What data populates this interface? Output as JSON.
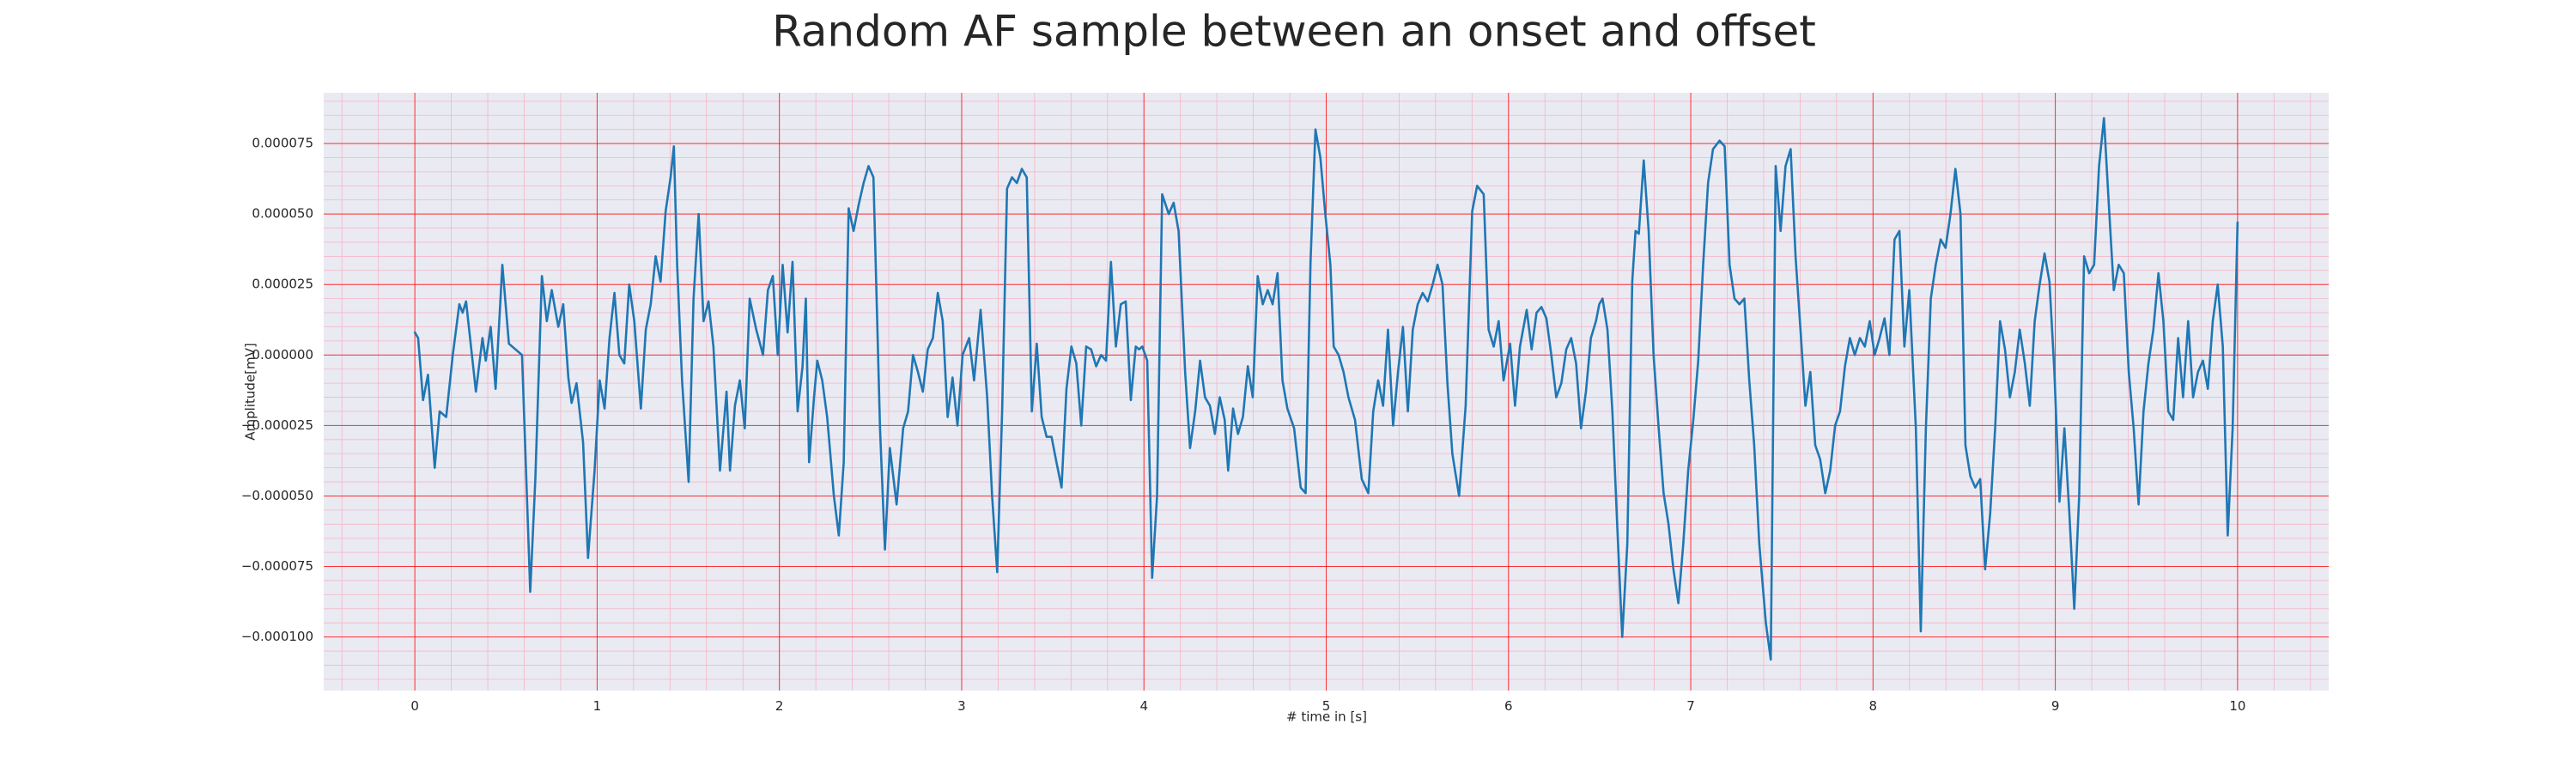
{
  "chart_data": {
    "type": "line",
    "title": "Random AF sample between an onset and offset",
    "xlabel": "# time in [s]",
    "ylabel": "Amplitude[mV]",
    "color": "#1f77b4",
    "grid": true,
    "minor_grid": true,
    "xlim": [
      -0.5,
      10.5
    ],
    "ylim": [
      -0.000119,
      9.3e-05
    ],
    "xticks": [
      0,
      1,
      2,
      3,
      4,
      5,
      6,
      7,
      8,
      9,
      10
    ],
    "yticks": [
      {
        "value": -0.0001,
        "label": "−0.000100"
      },
      {
        "value": -7.5e-05,
        "label": "−0.000075"
      },
      {
        "value": -5e-05,
        "label": "−0.000050"
      },
      {
        "value": -2.5e-05,
        "label": "−0.000025"
      },
      {
        "value": 0,
        "label": "0.000000"
      },
      {
        "value": 2.5e-05,
        "label": "0.000025"
      },
      {
        "value": 5e-05,
        "label": "0.000050"
      },
      {
        "value": 7.5e-05,
        "label": "0.000075"
      }
    ],
    "x": [
      0.0,
      0.018,
      0.045,
      0.072,
      0.109,
      0.136,
      0.172,
      0.208,
      0.244,
      0.262,
      0.281,
      0.308,
      0.335,
      0.371,
      0.389,
      0.416,
      0.443,
      0.48,
      0.516,
      0.552,
      0.588,
      0.633,
      0.661,
      0.697,
      0.724,
      0.751,
      0.787,
      0.814,
      0.842,
      0.86,
      0.887,
      0.923,
      0.95,
      0.986,
      1.014,
      1.041,
      1.068,
      1.095,
      1.122,
      1.149,
      1.176,
      1.204,
      1.24,
      1.267,
      1.294,
      1.321,
      1.348,
      1.376,
      1.403,
      1.421,
      1.439,
      1.466,
      1.502,
      1.529,
      1.557,
      1.584,
      1.611,
      1.638,
      1.674,
      1.71,
      1.729,
      1.756,
      1.783,
      1.81,
      1.837,
      1.873,
      1.91,
      1.937,
      1.964,
      1.991,
      2.018,
      2.045,
      2.072,
      2.1,
      2.127,
      2.145,
      2.163,
      2.19,
      2.208,
      2.235,
      2.262,
      2.299,
      2.326,
      2.353,
      2.38,
      2.407,
      2.434,
      2.462,
      2.489,
      2.516,
      2.552,
      2.579,
      2.606,
      2.643,
      2.679,
      2.706,
      2.733,
      2.76,
      2.787,
      2.814,
      2.842,
      2.869,
      2.896,
      2.923,
      2.95,
      2.977,
      3.005,
      3.023,
      3.041,
      3.068,
      3.104,
      3.14,
      3.167,
      3.195,
      3.222,
      3.249,
      3.276,
      3.303,
      3.33,
      3.357,
      3.385,
      3.412,
      3.439,
      3.466,
      3.493,
      3.52,
      3.548,
      3.575,
      3.602,
      3.629,
      3.656,
      3.683,
      3.71,
      3.738,
      3.765,
      3.792,
      3.819,
      3.846,
      3.873,
      3.9,
      3.928,
      3.955,
      3.973,
      3.991,
      4.018,
      4.045,
      4.072,
      4.1,
      4.136,
      4.163,
      4.19,
      4.226,
      4.253,
      4.281,
      4.308,
      4.335,
      4.362,
      4.389,
      4.416,
      4.443,
      4.462,
      4.489,
      4.516,
      4.543,
      4.57,
      4.597,
      4.624,
      4.652,
      4.679,
      4.706,
      4.733,
      4.76,
      4.787,
      4.824,
      4.86,
      4.887,
      4.914,
      4.941,
      4.968,
      4.995,
      5.023,
      5.041,
      5.068,
      5.095,
      5.122,
      5.158,
      5.195,
      5.231,
      5.258,
      5.285,
      5.312,
      5.339,
      5.367,
      5.394,
      5.421,
      5.448,
      5.475,
      5.502,
      5.529,
      5.557,
      5.584,
      5.611,
      5.638,
      5.665,
      5.692,
      5.729,
      5.765,
      5.801,
      5.828,
      5.864,
      5.891,
      5.919,
      5.946,
      5.973,
      6.009,
      6.036,
      6.063,
      6.1,
      6.127,
      6.154,
      6.181,
      6.208,
      6.235,
      6.262,
      6.29,
      6.317,
      6.344,
      6.371,
      6.398,
      6.425,
      6.452,
      6.48,
      6.498,
      6.516,
      6.543,
      6.57,
      6.597,
      6.624,
      6.652,
      6.679,
      6.697,
      6.715,
      6.742,
      6.769,
      6.796,
      6.824,
      6.851,
      6.878,
      6.905,
      6.932,
      6.959,
      6.986,
      7.014,
      7.041,
      7.068,
      7.095,
      7.122,
      7.158,
      7.186,
      7.213,
      7.24,
      7.267,
      7.294,
      7.321,
      7.348,
      7.376,
      7.412,
      7.439,
      7.466,
      7.493,
      7.52,
      7.548,
      7.575,
      7.602,
      7.629,
      7.656,
      7.683,
      7.71,
      7.738,
      7.765,
      7.792,
      7.819,
      7.846,
      7.873,
      7.9,
      7.928,
      7.955,
      7.982,
      8.009,
      8.036,
      8.063,
      8.09,
      8.118,
      8.145,
      8.172,
      8.199,
      8.235,
      8.262,
      8.29,
      8.317,
      8.344,
      8.371,
      8.398,
      8.425,
      8.452,
      8.48,
      8.507,
      8.534,
      8.561,
      8.588,
      8.615,
      8.643,
      8.67,
      8.697,
      8.724,
      8.751,
      8.778,
      8.805,
      8.833,
      8.86,
      8.887,
      8.914,
      8.941,
      8.968,
      8.995,
      9.023,
      9.05,
      9.077,
      9.104,
      9.131,
      9.158,
      9.186,
      9.213,
      9.24,
      9.267,
      9.294,
      9.321,
      9.348,
      9.376,
      9.403,
      9.43,
      9.457,
      9.484,
      9.511,
      9.538,
      9.566,
      9.593,
      9.62,
      9.647,
      9.674,
      9.701,
      9.729,
      9.756,
      9.783,
      9.81,
      9.837,
      9.864,
      9.891,
      9.919,
      9.946,
      9.973,
      10.0
    ],
    "values": [
      8e-06,
      6e-06,
      -1.6e-05,
      -7e-06,
      -4e-05,
      -2e-05,
      -2.2e-05,
      0,
      1.8e-05,
      1.5e-05,
      1.9e-05,
      3e-06,
      -1.3e-05,
      6e-06,
      -2e-06,
      1e-05,
      -1.2e-05,
      3.2e-05,
      4e-06,
      2e-06,
      0,
      -8.4e-05,
      -4.4e-05,
      2.8e-05,
      1.2e-05,
      2.3e-05,
      1e-05,
      1.8e-05,
      -8e-06,
      -1.7e-05,
      -1e-05,
      -3.1e-05,
      -7.2e-05,
      -4.1e-05,
      -9e-06,
      -1.9e-05,
      6e-06,
      2.2e-05,
      0,
      -3e-06,
      2.5e-05,
      1.2e-05,
      -1.9e-05,
      9e-06,
      1.8e-05,
      3.5e-05,
      2.6e-05,
      5.1e-05,
      6.3e-05,
      7.4e-05,
      3.2e-05,
      -9e-06,
      -4.5e-05,
      2e-05,
      5e-05,
      1.2e-05,
      1.9e-05,
      3e-06,
      -4.1e-05,
      -1.3e-05,
      -4.1e-05,
      -1.8e-05,
      -9e-06,
      -2.6e-05,
      2e-05,
      9e-06,
      0,
      2.3e-05,
      2.8e-05,
      0,
      3.2e-05,
      8e-06,
      3.3e-05,
      -2e-05,
      -4e-06,
      2e-05,
      -3.8e-05,
      -1.5e-05,
      -2e-06,
      -9e-06,
      -2.2e-05,
      -5e-05,
      -6.4e-05,
      -3.8e-05,
      5.2e-05,
      4.4e-05,
      5.3e-05,
      6.1e-05,
      6.7e-05,
      6.3e-05,
      -2.6e-05,
      -6.9e-05,
      -3.3e-05,
      -5.3e-05,
      -2.6e-05,
      -2e-05,
      0,
      -6e-06,
      -1.3e-05,
      2e-06,
      6e-06,
      2.2e-05,
      1.2e-05,
      -2.2e-05,
      -8e-06,
      -2.5e-05,
      0,
      3e-06,
      6e-06,
      -9e-06,
      1.6e-05,
      -1.5e-05,
      -5e-05,
      -7.7e-05,
      -2e-05,
      5.9e-05,
      6.3e-05,
      6.1e-05,
      6.6e-05,
      6.3e-05,
      -2e-05,
      4e-06,
      -2.2e-05,
      -2.9e-05,
      -2.9e-05,
      -3.8e-05,
      -4.7e-05,
      -1.2e-05,
      3e-06,
      -3e-06,
      -2.5e-05,
      3e-06,
      2e-06,
      -4e-06,
      0,
      -2e-06,
      3.3e-05,
      3e-06,
      1.8e-05,
      1.9e-05,
      -1.6e-05,
      3e-06,
      2e-06,
      3e-06,
      -2e-06,
      -7.9e-05,
      -5e-05,
      5.7e-05,
      5e-05,
      5.4e-05,
      4.4e-05,
      -6e-06,
      -3.3e-05,
      -2e-05,
      -2e-06,
      -1.5e-05,
      -1.8e-05,
      -2.8e-05,
      -1.5e-05,
      -2.3e-05,
      -4.1e-05,
      -1.9e-05,
      -2.8e-05,
      -2.2e-05,
      -4e-06,
      -1.5e-05,
      2.8e-05,
      1.8e-05,
      2.3e-05,
      1.8e-05,
      2.9e-05,
      -9e-06,
      -1.9e-05,
      -2.6e-05,
      -4.7e-05,
      -4.9e-05,
      3.3e-05,
      8e-05,
      7e-05,
      5e-05,
      3.2e-05,
      3e-06,
      0,
      -6e-06,
      -1.5e-05,
      -2.3e-05,
      -4.4e-05,
      -4.9e-05,
      -2e-05,
      -9e-06,
      -1.8e-05,
      9e-06,
      -2.5e-05,
      -6e-06,
      1e-05,
      -2e-05,
      9e-06,
      1.8e-05,
      2.2e-05,
      1.9e-05,
      2.5e-05,
      3.2e-05,
      2.5e-05,
      -1e-05,
      -3.5e-05,
      -5e-05,
      -1.8e-05,
      5.1e-05,
      6e-05,
      5.7e-05,
      9e-06,
      3e-06,
      1.2e-05,
      -9e-06,
      4e-06,
      -1.8e-05,
      3e-06,
      1.6e-05,
      2e-06,
      1.5e-05,
      1.7e-05,
      1.3e-05,
      0,
      -1.5e-05,
      -1e-05,
      2e-06,
      6e-06,
      -3e-06,
      -2.6e-05,
      -1.3e-05,
      6e-06,
      1.2e-05,
      1.8e-05,
      2e-05,
      9e-06,
      -2e-05,
      -6.1e-05,
      -0.0001,
      -6.7e-05,
      2.6e-05,
      4.4e-05,
      4.3e-05,
      6.9e-05,
      4.4e-05,
      0,
      -2.6e-05,
      -4.9e-05,
      -6e-05,
      -7.6e-05,
      -8.8e-05,
      -6.7e-05,
      -4.1e-05,
      -2.3e-05,
      -2e-06,
      3.2e-05,
      6.1e-05,
      7.3e-05,
      7.6e-05,
      7.4e-05,
      3.2e-05,
      2e-05,
      1.8e-05,
      2e-05,
      -9e-06,
      -3.2e-05,
      -6.7e-05,
      -9.5e-05,
      -0.000108,
      6.7e-05,
      4.4e-05,
      6.7e-05,
      7.3e-05,
      3.5e-05,
      9e-06,
      -1.8e-05,
      -6e-06,
      -3.2e-05,
      -3.7e-05,
      -4.9e-05,
      -4.1e-05,
      -2.5e-05,
      -2e-05,
      -4e-06,
      6e-06,
      0,
      6e-06,
      3e-06,
      1.2e-05,
      0,
      6e-06,
      1.3e-05,
      0,
      4.1e-05,
      4.4e-05,
      3e-06,
      2.3e-05,
      -2.6e-05,
      -9.8e-05,
      -2.6e-05,
      2e-05,
      3.2e-05,
      4.1e-05,
      3.8e-05,
      5e-05,
      6.6e-05,
      5e-05,
      -3.2e-05,
      -4.3e-05,
      -4.7e-05,
      -4.4e-05,
      -7.6e-05,
      -5.6e-05,
      -2.6e-05,
      1.2e-05,
      2e-06,
      -1.5e-05,
      -6e-06,
      9e-06,
      -3e-06,
      -1.8e-05,
      1.2e-05,
      2.5e-05,
      3.6e-05,
      2.6e-05,
      -6e-06,
      -5.2e-05,
      -2.6e-05,
      -5.6e-05,
      -9e-05,
      -5e-05,
      3.5e-05,
      2.9e-05,
      3.2e-05,
      6.7e-05,
      8.4e-05,
      5.3e-05,
      2.3e-05,
      3.2e-05,
      2.9e-05,
      -6e-06,
      -2.6e-05,
      -5.3e-05,
      -2e-05,
      -3e-06,
      9e-06,
      2.9e-05,
      1.2e-05,
      -2e-05,
      -2.3e-05,
      6e-06,
      -1.5e-05,
      1.2e-05,
      -1.5e-05,
      -6e-06,
      -2e-06,
      -1.2e-05,
      1.2e-05,
      2.5e-05,
      3e-06,
      -6.4e-05,
      -2.6e-05,
      4.7e-05
    ]
  }
}
